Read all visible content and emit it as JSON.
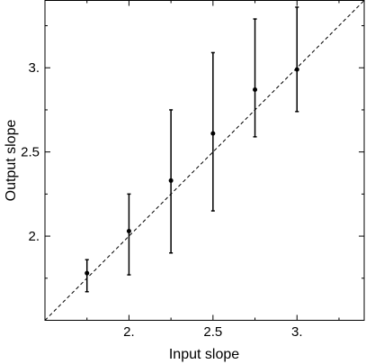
{
  "chart_data": {
    "type": "scatter",
    "title": "",
    "xlabel": "Input slope",
    "ylabel": "Output slope",
    "xlim": [
      1.5,
      3.4
    ],
    "ylim": [
      1.5,
      3.4
    ],
    "x_ticks_major": [
      2.0,
      2.5,
      3.0
    ],
    "x_tick_labels": [
      "2.",
      "2.5",
      "3."
    ],
    "y_ticks_major": [
      2.0,
      2.5,
      3.0
    ],
    "y_tick_labels": [
      "2.",
      "2.5",
      "3."
    ],
    "minor_tick_step": 0.25,
    "grid": false,
    "reference_line": {
      "style": "dashed",
      "slope": 1,
      "intercept": 0
    },
    "series": [
      {
        "points": [
          {
            "x": 1.75,
            "y": 1.78,
            "ylow": 1.67,
            "yhigh": 1.86
          },
          {
            "x": 2.0,
            "y": 2.03,
            "ylow": 1.77,
            "yhigh": 2.25
          },
          {
            "x": 2.25,
            "y": 2.33,
            "ylow": 1.9,
            "yhigh": 2.75
          },
          {
            "x": 2.5,
            "y": 2.61,
            "ylow": 2.15,
            "yhigh": 3.09
          },
          {
            "x": 2.75,
            "y": 2.87,
            "ylow": 2.59,
            "yhigh": 3.29
          },
          {
            "x": 3.0,
            "y": 2.99,
            "ylow": 2.74,
            "yhigh": 3.36
          }
        ]
      }
    ]
  }
}
